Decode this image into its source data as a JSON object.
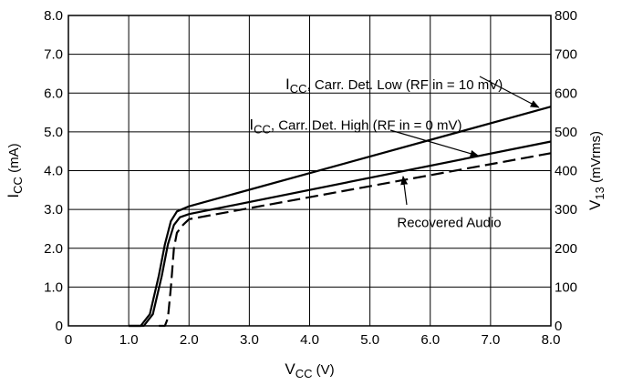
{
  "chart_data": {
    "type": "line",
    "title": "",
    "x_axis": {
      "label_main": "V",
      "label_sub": "CC",
      "label_tail": " (V)",
      "range": [
        0,
        8.0
      ],
      "ticks": [
        0,
        1.0,
        2.0,
        3.0,
        4.0,
        5.0,
        6.0,
        7.0,
        8.0
      ],
      "tick_labels": [
        "0",
        "1.0",
        "2.0",
        "3.0",
        "4.0",
        "5.0",
        "6.0",
        "7.0",
        "8.0"
      ]
    },
    "y_axis_left": {
      "label_main": "I",
      "label_sub": "CC",
      "label_tail": " (mA)",
      "range": [
        0,
        8.0
      ],
      "ticks": [
        0,
        1.0,
        2.0,
        3.0,
        4.0,
        5.0,
        6.0,
        7.0,
        8.0
      ],
      "tick_labels": [
        "0",
        "1.0",
        "2.0",
        "3.0",
        "4.0",
        "5.0",
        "6.0",
        "7.0",
        "8.0"
      ]
    },
    "y_axis_right": {
      "label_main": "V",
      "label_sub": "13",
      "label_tail": " (mVrms)",
      "range": [
        0,
        800
      ],
      "ticks": [
        0,
        100,
        200,
        300,
        400,
        500,
        600,
        700,
        800
      ],
      "tick_labels": [
        "0",
        "100",
        "200",
        "300",
        "400",
        "500",
        "600",
        "700",
        "800"
      ]
    },
    "grid": true,
    "series": [
      {
        "name_main": "I",
        "name_sub": "CC",
        "name_tail": ", Carr. Det. Low (RF in = 10 mV)",
        "axis": "left",
        "style": "solid",
        "x": [
          1.0,
          1.2,
          1.35,
          1.5,
          1.6,
          1.7,
          1.8,
          2.0,
          8.0
        ],
        "y": [
          0,
          0,
          0.3,
          1.3,
          2.1,
          2.7,
          2.95,
          3.08,
          5.65
        ]
      },
      {
        "name_main": "I",
        "name_sub": "CC",
        "name_tail": ", Carr. Det. High (RF in = 0 mV)",
        "axis": "left",
        "style": "solid",
        "x": [
          1.0,
          1.25,
          1.4,
          1.55,
          1.65,
          1.75,
          1.85,
          2.0,
          8.0
        ],
        "y": [
          0,
          0,
          0.3,
          1.3,
          2.1,
          2.6,
          2.8,
          2.88,
          4.75
        ]
      },
      {
        "name": "Recovered Audio",
        "axis": "right",
        "style": "dashed",
        "x": [
          1.5,
          1.6,
          1.65,
          1.7,
          1.75,
          1.8,
          1.9,
          2.0,
          8.0
        ],
        "y": [
          0,
          0,
          20,
          100,
          200,
          240,
          260,
          275,
          445
        ]
      }
    ],
    "annotations": [
      {
        "series": 0,
        "text_pos": [
          3.6,
          6.1
        ],
        "arrow_to": [
          7.8,
          5.63
        ]
      },
      {
        "series": 1,
        "text_pos": [
          3.0,
          5.05
        ],
        "arrow_to": [
          6.8,
          4.38
        ]
      },
      {
        "series": 2,
        "text_pos": [
          5.45,
          2.55
        ],
        "arrow_to": [
          5.55,
          3.85
        ]
      }
    ]
  }
}
